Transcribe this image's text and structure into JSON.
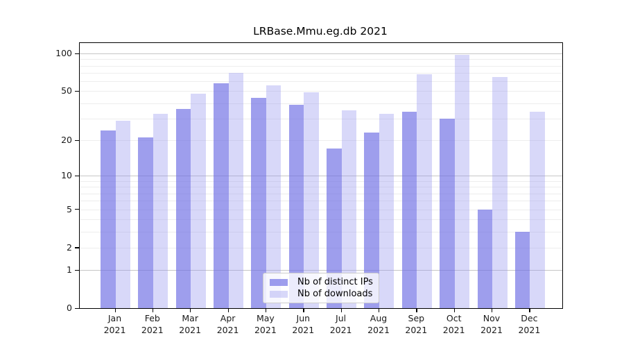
{
  "chart_data": {
    "type": "bar",
    "title": "LRBase.Mmu.eg.db 2021",
    "yscale": "log1p",
    "ylim": [
      0,
      121
    ],
    "grid": "on",
    "legend_position": "bottom-center-inside",
    "yticks": [
      100,
      50,
      20,
      10,
      5,
      2,
      1,
      0
    ],
    "grid_major": [
      1,
      10,
      100
    ],
    "grid_minor": [
      2,
      3,
      4,
      5,
      6,
      7,
      8,
      9,
      20,
      30,
      40,
      50,
      60,
      70,
      80,
      90
    ],
    "categories": [
      "Jan",
      "Feb",
      "Mar",
      "Apr",
      "May",
      "Jun",
      "Jul",
      "Aug",
      "Sep",
      "Oct",
      "Nov",
      "Dec"
    ],
    "year": "2021",
    "series": [
      {
        "name": "Nb of distinct IPs",
        "color_key": "ip_bar",
        "values": [
          24,
          21,
          36,
          58,
          44,
          39,
          17,
          23,
          34,
          30,
          5,
          3
        ]
      },
      {
        "name": "Nb of downloads",
        "color_key": "dl_bar",
        "values": [
          29,
          33,
          48,
          70,
          56,
          49,
          35,
          33,
          68,
          97,
          65,
          34
        ]
      }
    ]
  },
  "colors": {
    "ip_bar": "rgba(108,108,228,0.66)",
    "dl_bar": "rgba(153,153,238,0.38)",
    "grid_major": "#c6c6c6",
    "grid_minor": "#ededed",
    "axis": "#000000",
    "text": "#1a1a1a",
    "legend_border": "#cccccc",
    "legend_bg": "rgba(255,255,255,0.8)"
  }
}
